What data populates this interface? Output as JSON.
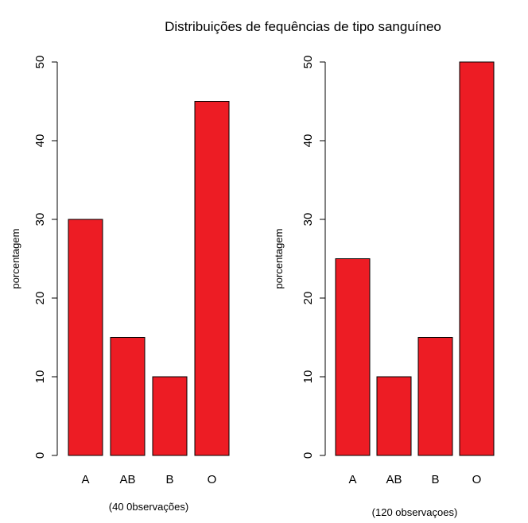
{
  "figure": {
    "title": "Distribuições de fequências de tipo sanguíneo"
  },
  "bar_color": "#ED1C24",
  "chart_data": [
    {
      "type": "bar",
      "categories": [
        "A",
        "AB",
        "B",
        "O"
      ],
      "values": [
        30,
        15,
        10,
        45
      ],
      "title": "",
      "xlabel": "(40 0bservações)",
      "ylabel": "porcentagem",
      "ylim": [
        0,
        50
      ],
      "yticks": [
        0,
        10,
        20,
        30,
        40,
        50
      ],
      "grid": false
    },
    {
      "type": "bar",
      "categories": [
        "A",
        "AB",
        "B",
        "O"
      ],
      "values": [
        25,
        10,
        15,
        50
      ],
      "title": "",
      "xlabel": "(120 observaçoes)",
      "ylabel": "porcentagem",
      "ylim": [
        0,
        50
      ],
      "yticks": [
        0,
        10,
        20,
        30,
        40,
        50
      ],
      "grid": false
    }
  ]
}
